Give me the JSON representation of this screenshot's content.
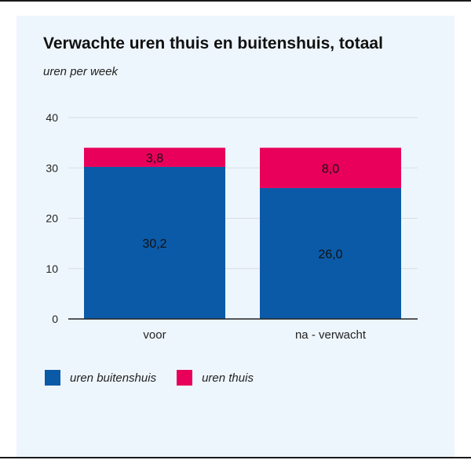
{
  "chart_data": {
    "type": "bar",
    "stacked": true,
    "title": "Verwachte uren thuis en buitenshuis, totaal",
    "subtitle": "uren per week",
    "categories": [
      "voor",
      "na - verwacht"
    ],
    "series": [
      {
        "name": "uren buitenshuis",
        "color": "#0b5aa7",
        "values": [
          30.2,
          26.0
        ],
        "labels": [
          "30,2",
          "26,0"
        ]
      },
      {
        "name": "uren thuis",
        "color": "#e8005b",
        "values": [
          3.8,
          8.0
        ],
        "labels": [
          "3,8",
          "8,0"
        ]
      }
    ],
    "y_ticks": [
      "0",
      "10",
      "20",
      "30",
      "40"
    ],
    "ylim": [
      0,
      40
    ],
    "grid": true,
    "legend_position": "bottom-left"
  }
}
